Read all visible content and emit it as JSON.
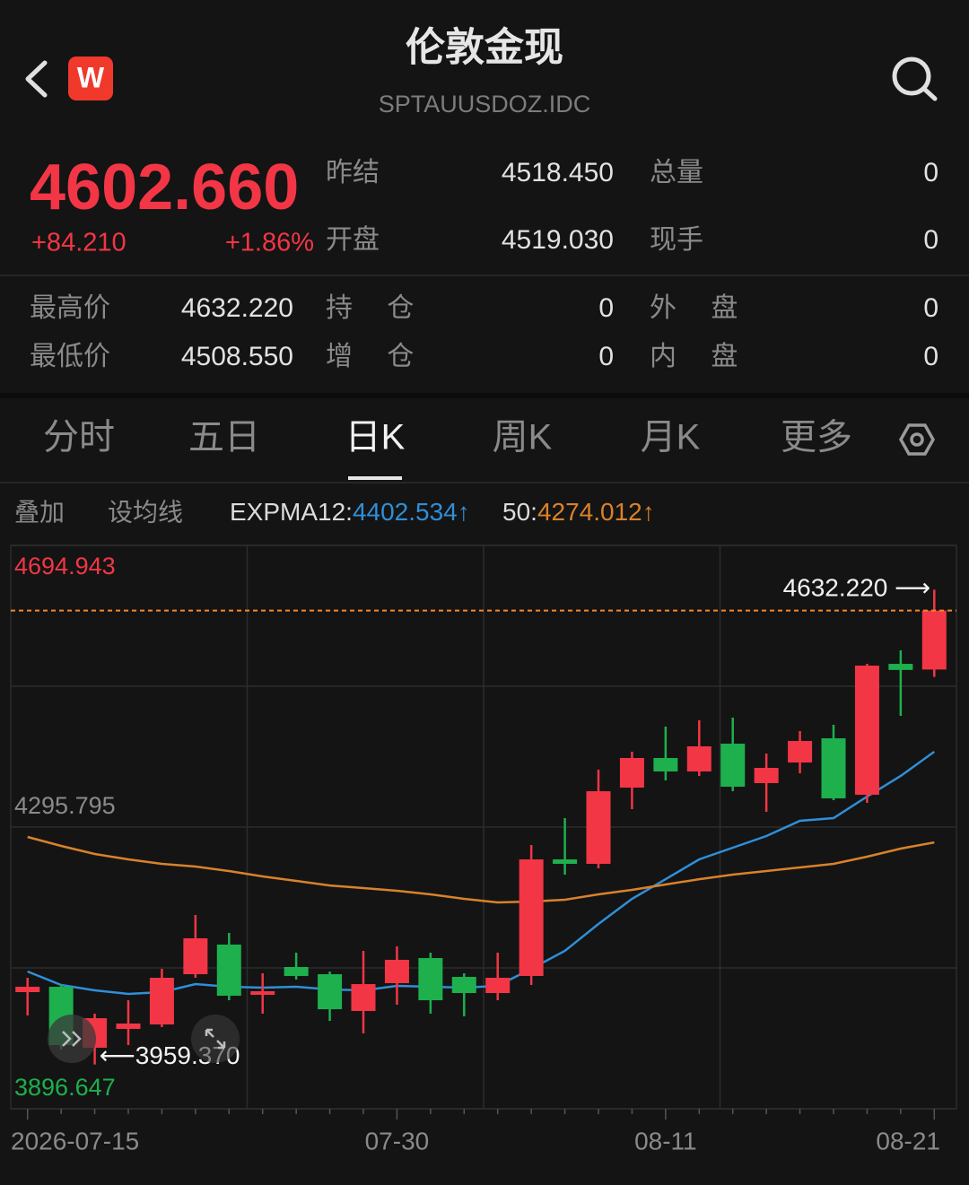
{
  "header": {
    "logo": "W",
    "title": "伦敦金现",
    "subtitle": "SPTAUUSDOZ.IDC"
  },
  "quote": {
    "price": "4602.660",
    "change": "+84.210",
    "change_pct": "+1.86%",
    "fields": [
      {
        "label": "昨结",
        "value": "4518.450"
      },
      {
        "label": "总量",
        "value": "0"
      },
      {
        "label": "开盘",
        "value": "4519.030"
      },
      {
        "label": "现手",
        "value": "0"
      },
      {
        "label": "最高价",
        "value": "4632.220"
      },
      {
        "label": "持 仓",
        "value": "0"
      },
      {
        "label": "外 盘",
        "value": "0"
      },
      {
        "label": "最低价",
        "value": "4508.550"
      },
      {
        "label": "增 仓",
        "value": "0"
      },
      {
        "label": "内 盘",
        "value": "0"
      }
    ]
  },
  "tabs": {
    "items": [
      "分时",
      "五日",
      "日K",
      "周K",
      "月K",
      "更多"
    ],
    "active": 2
  },
  "toolbar": [
    "叠加",
    "设均线"
  ],
  "chart_data": {
    "type": "candlestick",
    "categories": [
      "2026-07-15",
      null,
      null,
      null,
      null,
      null,
      null,
      null,
      null,
      null,
      null,
      "07-30",
      null,
      null,
      null,
      null,
      null,
      null,
      null,
      "08-11",
      null,
      null,
      null,
      null,
      null,
      null,
      null,
      "08-21"
    ],
    "open": [
      4061.9,
      4069.5,
      3983.1,
      4009.8,
      4016.1,
      4087.3,
      4129.3,
      4058.1,
      4097.5,
      4087.3,
      4035.2,
      4074.6,
      4110.2,
      4083.5,
      4060.6,
      4084.8,
      4250.0,
      4243.7,
      4351.7,
      4393.7,
      4374.6,
      4414.0,
      4358.1,
      4387.3,
      4421.6,
      4341.6,
      4527.1,
      4519.03
    ],
    "high": [
      4082.2,
      4073.3,
      4031.4,
      4050.4,
      4094.9,
      4171.2,
      4145.8,
      4088.6,
      4117.8,
      4091.1,
      4120.4,
      4126.7,
      4117.8,
      4088.6,
      4117.8,
      4270.4,
      4308.5,
      4377.1,
      4402.6,
      4438.2,
      4447.1,
      4450.9,
      4400.0,
      4431.8,
      4440.7,
      4527.1,
      4546.2,
      4632.22
    ],
    "low": [
      4028.8,
      3980.5,
      3959.37,
      3986.9,
      4012.3,
      4082.2,
      4050.4,
      4031.4,
      4079.7,
      4021.2,
      4003.4,
      4044.1,
      4031.4,
      4027.6,
      4050.4,
      4072.1,
      4228.4,
      4237.3,
      4321.2,
      4361.9,
      4368.2,
      4346.6,
      4317.4,
      4372.1,
      4333.9,
      4330.1,
      4453.4,
      4508.55
    ],
    "close": [
      4069.5,
      3986.9,
      4025.0,
      4017.4,
      4082.2,
      4138.2,
      4056.8,
      4063.2,
      4084.8,
      4037.7,
      4073.3,
      4107.7,
      4050.4,
      4060.6,
      4082.2,
      4250.0,
      4243.7,
      4346.6,
      4393.7,
      4374.6,
      4410.2,
      4353.0,
      4379.7,
      4417.8,
      4336.5,
      4524.6,
      4518.45,
      4602.66
    ],
    "up_color": "#f23645",
    "down_color": "#1db04d",
    "series": [
      {
        "name": "EXPMA12:",
        "color": "#2f8fd8",
        "values": [
          4091.1,
          4072.1,
          4064.4,
          4059.3,
          4061.9,
          4073.3,
          4069.5,
          4068.2,
          4069.5,
          4065.7,
          4064.4,
          4070.8,
          4069.5,
          4068.2,
          4070.8,
          4094.9,
          4120.4,
          4158.5,
          4194.1,
          4222.0,
          4250.0,
          4266.5,
          4283.1,
          4304.7,
          4308.5,
          4339.0,
          4368.2,
          4402.534
        ]
      },
      {
        "name": "50:",
        "color": "#d9822b",
        "values": [
          4281.8,
          4269.1,
          4257.6,
          4250.0,
          4243.7,
          4239.8,
          4233.5,
          4225.9,
          4219.5,
          4213.1,
          4209.3,
          4205.5,
          4200.4,
          4194.1,
          4189.0,
          4190.3,
          4192.8,
          4200.4,
          4206.8,
          4214.4,
          4222.0,
          4228.4,
          4233.5,
          4238.6,
          4243.7,
          4253.8,
          4265.3,
          4274.012
        ]
      }
    ],
    "trend": "↑",
    "ylim": [
      3896.647,
      4694.943
    ],
    "yticks": [
      3896.647,
      4295.795,
      4694.943
    ],
    "grid": true,
    "annotations": [
      {
        "value": 4632.22,
        "label": "4632.220 ⟶"
      },
      {
        "value": 3959.37,
        "label": "⟵3959.370"
      }
    ]
  }
}
